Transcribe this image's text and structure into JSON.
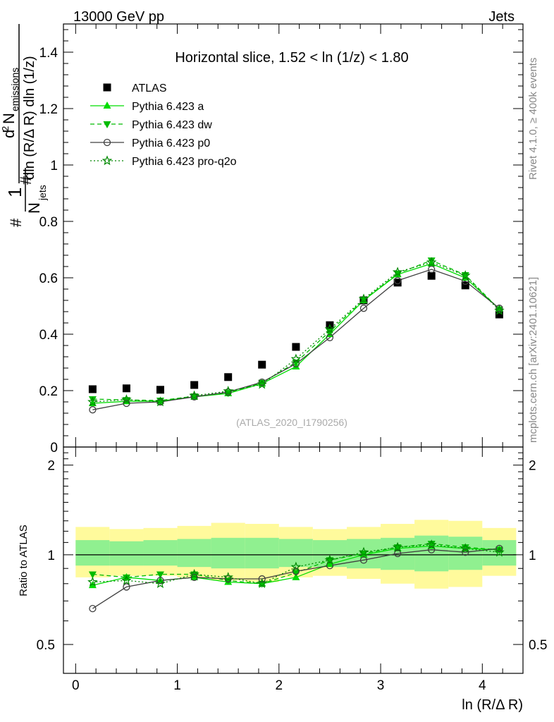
{
  "header": {
    "left": "13000 GeV pp",
    "right": "Jets"
  },
  "side": {
    "rivet": "Rivet 4.1.0, ≥ 400k events",
    "mcplots": "mcplots.cern.ch [arXiv:2401.10621]"
  },
  "colors": {
    "atlas": "#000000",
    "pythia_a": "#00dd00",
    "pythia_dw": "#00bb00",
    "pythia_p0": "#404040",
    "pythia_proq2o": "#008800",
    "band_yellow": "#fffa9c",
    "band_green": "#90f090"
  },
  "chart_data": [
    {
      "type": "scatter",
      "title": "Horizontal slice, 1.52 < ln (1/z) < 1.80",
      "watermark": "(ATLAS_2020_I1790256)",
      "ylabel": "1/N_jets d²N_emissions / dln (R/Δ R) dln (1/z)",
      "ylabel_parts": {
        "frac1_num": "1",
        "frac1_den": "N",
        "frac1_den_sub": "jets",
        "frac2_num_pre": "d",
        "frac2_num_sup": "2",
        "frac2_num_main": "N",
        "frac2_num_sub": "emissions",
        "frac2_den": "dln (R/Δ R) dln (1/z)",
        "hash": "#"
      },
      "xlim": [
        -0.12,
        4.4
      ],
      "ylim": [
        0,
        1.5
      ],
      "yticks": [
        {
          "v": 0,
          "label": "0"
        },
        {
          "v": 0.2,
          "label": "0.2"
        },
        {
          "v": 0.4,
          "label": "0.4"
        },
        {
          "v": 0.6,
          "label": "0.6"
        },
        {
          "v": 0.8,
          "label": "0.8"
        },
        {
          "v": 1.0,
          "label": "1"
        },
        {
          "v": 1.2,
          "label": "1.2"
        },
        {
          "v": 1.4,
          "label": "1.4"
        }
      ],
      "x": [
        0.167,
        0.5,
        0.833,
        1.167,
        1.5,
        1.833,
        2.167,
        2.5,
        2.833,
        3.167,
        3.5,
        3.833,
        4.167
      ],
      "series": [
        {
          "name": "ATLAS",
          "marker": "square",
          "line": "none",
          "colorKey": "atlas",
          "values": [
            0.205,
            0.208,
            0.203,
            0.22,
            0.248,
            0.292,
            0.355,
            0.432,
            0.52,
            0.583,
            0.607,
            0.573,
            0.47
          ]
        },
        {
          "name": "Pythia 6.423 a",
          "marker": "triangle-up",
          "line": "solid",
          "colorKey": "pythia_a",
          "values": [
            0.155,
            0.162,
            0.163,
            0.178,
            0.19,
            0.225,
            0.285,
            0.4,
            0.52,
            0.612,
            0.65,
            0.6,
            0.49
          ]
        },
        {
          "name": "Pythia 6.423 dw",
          "marker": "triangle-down",
          "line": "dashed",
          "colorKey": "pythia_dw",
          "values": [
            0.17,
            0.167,
            0.165,
            0.18,
            0.192,
            0.228,
            0.3,
            0.41,
            0.522,
            0.615,
            0.662,
            0.61,
            0.488
          ]
        },
        {
          "name": "Pythia 6.423 p0",
          "marker": "circle-open",
          "line": "solid",
          "colorKey": "pythia_p0",
          "values": [
            0.132,
            0.155,
            0.16,
            0.178,
            0.195,
            0.23,
            0.295,
            0.388,
            0.492,
            0.59,
            0.63,
            0.588,
            0.492
          ]
        },
        {
          "name": "Pythia 6.423 pro-q2o",
          "marker": "star-open",
          "line": "dotted",
          "colorKey": "pythia_proq2o",
          "values": [
            0.16,
            0.168,
            0.16,
            0.182,
            0.198,
            0.222,
            0.312,
            0.418,
            0.525,
            0.62,
            0.655,
            0.608,
            0.484
          ]
        }
      ]
    },
    {
      "type": "line",
      "ylabel": "Ratio to ATLAS",
      "xlabel": "ln (R/Δ R)",
      "ylim": [
        0.4,
        2.3
      ],
      "yscale": "log",
      "yticks": [
        {
          "v": 0.5,
          "label": "0.5"
        },
        {
          "v": 1,
          "label": "1"
        },
        {
          "v": 2,
          "label": "2"
        }
      ],
      "xticks": [
        {
          "v": 0,
          "label": "0"
        },
        {
          "v": 1,
          "label": "1"
        },
        {
          "v": 2,
          "label": "2"
        },
        {
          "v": 3,
          "label": "3"
        },
        {
          "v": 4,
          "label": "4"
        }
      ],
      "bin_edges": [
        0,
        0.333,
        0.667,
        1.0,
        1.333,
        1.667,
        2.0,
        2.333,
        2.667,
        3.0,
        3.333,
        3.667,
        4.0,
        4.333
      ],
      "band_outer": [
        [
          0.84,
          1.24
        ],
        [
          0.85,
          1.22
        ],
        [
          0.85,
          1.23
        ],
        [
          0.84,
          1.25
        ],
        [
          0.82,
          1.28
        ],
        [
          0.81,
          1.27
        ],
        [
          0.84,
          1.24
        ],
        [
          0.85,
          1.22
        ],
        [
          0.83,
          1.24
        ],
        [
          0.8,
          1.27
        ],
        [
          0.77,
          1.31
        ],
        [
          0.78,
          1.3
        ],
        [
          0.85,
          1.23
        ]
      ],
      "band_inner": [
        [
          0.92,
          1.12
        ],
        [
          0.92,
          1.11
        ],
        [
          0.92,
          1.12
        ],
        [
          0.91,
          1.13
        ],
        [
          0.9,
          1.14
        ],
        [
          0.9,
          1.14
        ],
        [
          0.91,
          1.13
        ],
        [
          0.91,
          1.12
        ],
        [
          0.9,
          1.13
        ],
        [
          0.89,
          1.14
        ],
        [
          0.88,
          1.16
        ],
        [
          0.89,
          1.15
        ],
        [
          0.92,
          1.12
        ]
      ],
      "series": [
        {
          "name": "Pythia 6.423 a",
          "colorKey": "pythia_a",
          "values": [
            0.79,
            0.84,
            0.82,
            0.84,
            0.81,
            0.8,
            0.84,
            0.93,
            1.0,
            1.05,
            1.07,
            1.05,
            1.04
          ]
        },
        {
          "name": "Pythia 6.423 dw",
          "colorKey": "pythia_dw",
          "values": [
            0.86,
            0.84,
            0.86,
            0.86,
            0.82,
            0.8,
            0.87,
            0.96,
            1.01,
            1.06,
            1.09,
            1.06,
            1.04
          ]
        },
        {
          "name": "Pythia 6.423 p0",
          "colorKey": "pythia_p0",
          "values": [
            0.66,
            0.78,
            0.82,
            0.84,
            0.83,
            0.83,
            0.88,
            0.92,
            0.96,
            1.01,
            1.04,
            1.02,
            1.05
          ]
        },
        {
          "name": "Pythia 6.423 pro-q2o",
          "colorKey": "pythia_proq2o",
          "values": [
            0.81,
            0.82,
            0.8,
            0.86,
            0.84,
            0.8,
            0.91,
            0.96,
            1.02,
            1.06,
            1.08,
            1.05,
            1.02
          ]
        }
      ]
    }
  ]
}
